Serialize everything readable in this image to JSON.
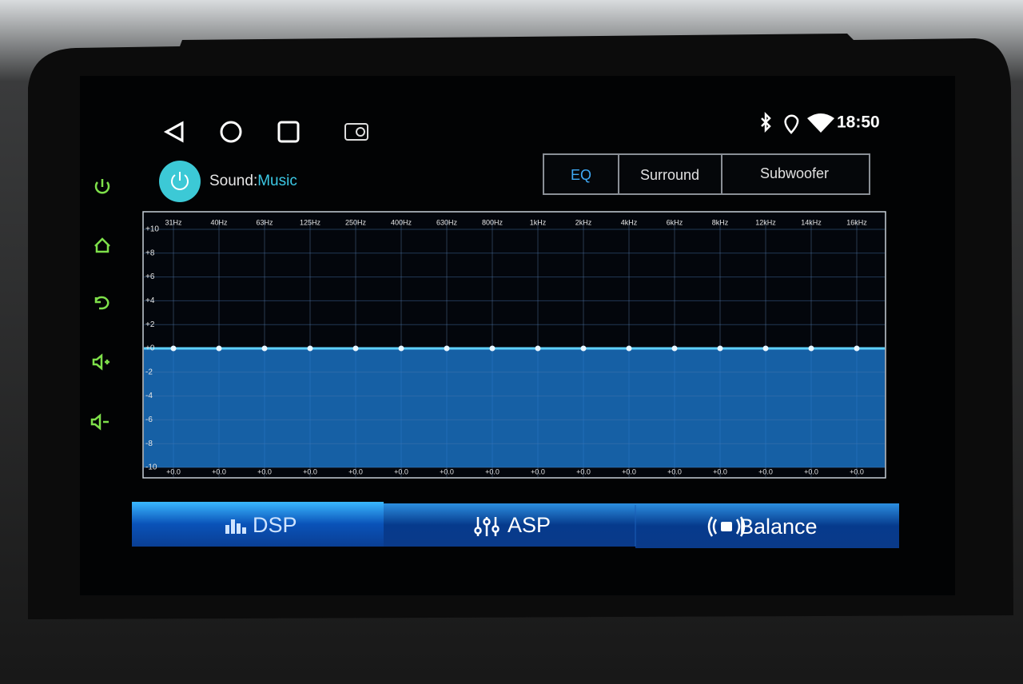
{
  "status_bar": {
    "time": "18:50"
  },
  "header": {
    "label": "Sound:",
    "source": "Music"
  },
  "tabs": [
    "EQ",
    "Surround",
    "Subwoofer"
  ],
  "chart_data": {
    "type": "line",
    "color": "#1e7fd8",
    "line_color": "#5fd0ff",
    "grid": true,
    "categories": [
      "31Hz",
      "40Hz",
      "63Hz",
      "125Hz",
      "250Hz",
      "400Hz",
      "630Hz",
      "800Hz",
      "1kHz",
      "2kHz",
      "4kHz",
      "6kHz",
      "8kHz",
      "12kHz",
      "14kHz",
      "16kHz"
    ],
    "values": [
      0,
      0,
      0,
      0,
      0,
      0,
      0,
      0,
      0,
      0,
      0,
      0,
      0,
      0,
      0,
      0
    ],
    "value_labels": [
      "+0.0",
      "+0.0",
      "+0.0",
      "+0.0",
      "+0.0",
      "+0.0",
      "+0.0",
      "+0.0",
      "+0.0",
      "+0.0",
      "+0.0",
      "+0.0",
      "+0.0",
      "+0.0",
      "+0.0",
      "+0.0"
    ],
    "ylim": [
      -10,
      10
    ],
    "yticks": [
      {
        "value": 10,
        "label": "+10"
      },
      {
        "value": 8,
        "label": "+8"
      },
      {
        "value": 6,
        "label": "+6"
      },
      {
        "value": 4,
        "label": "+4"
      },
      {
        "value": 2,
        "label": "+2"
      },
      {
        "value": 0,
        "label": "+0"
      },
      -2,
      -4,
      -6,
      -8,
      -10
    ]
  },
  "bottom_tabs": [
    "DSP",
    "ASP",
    "Balance"
  ]
}
